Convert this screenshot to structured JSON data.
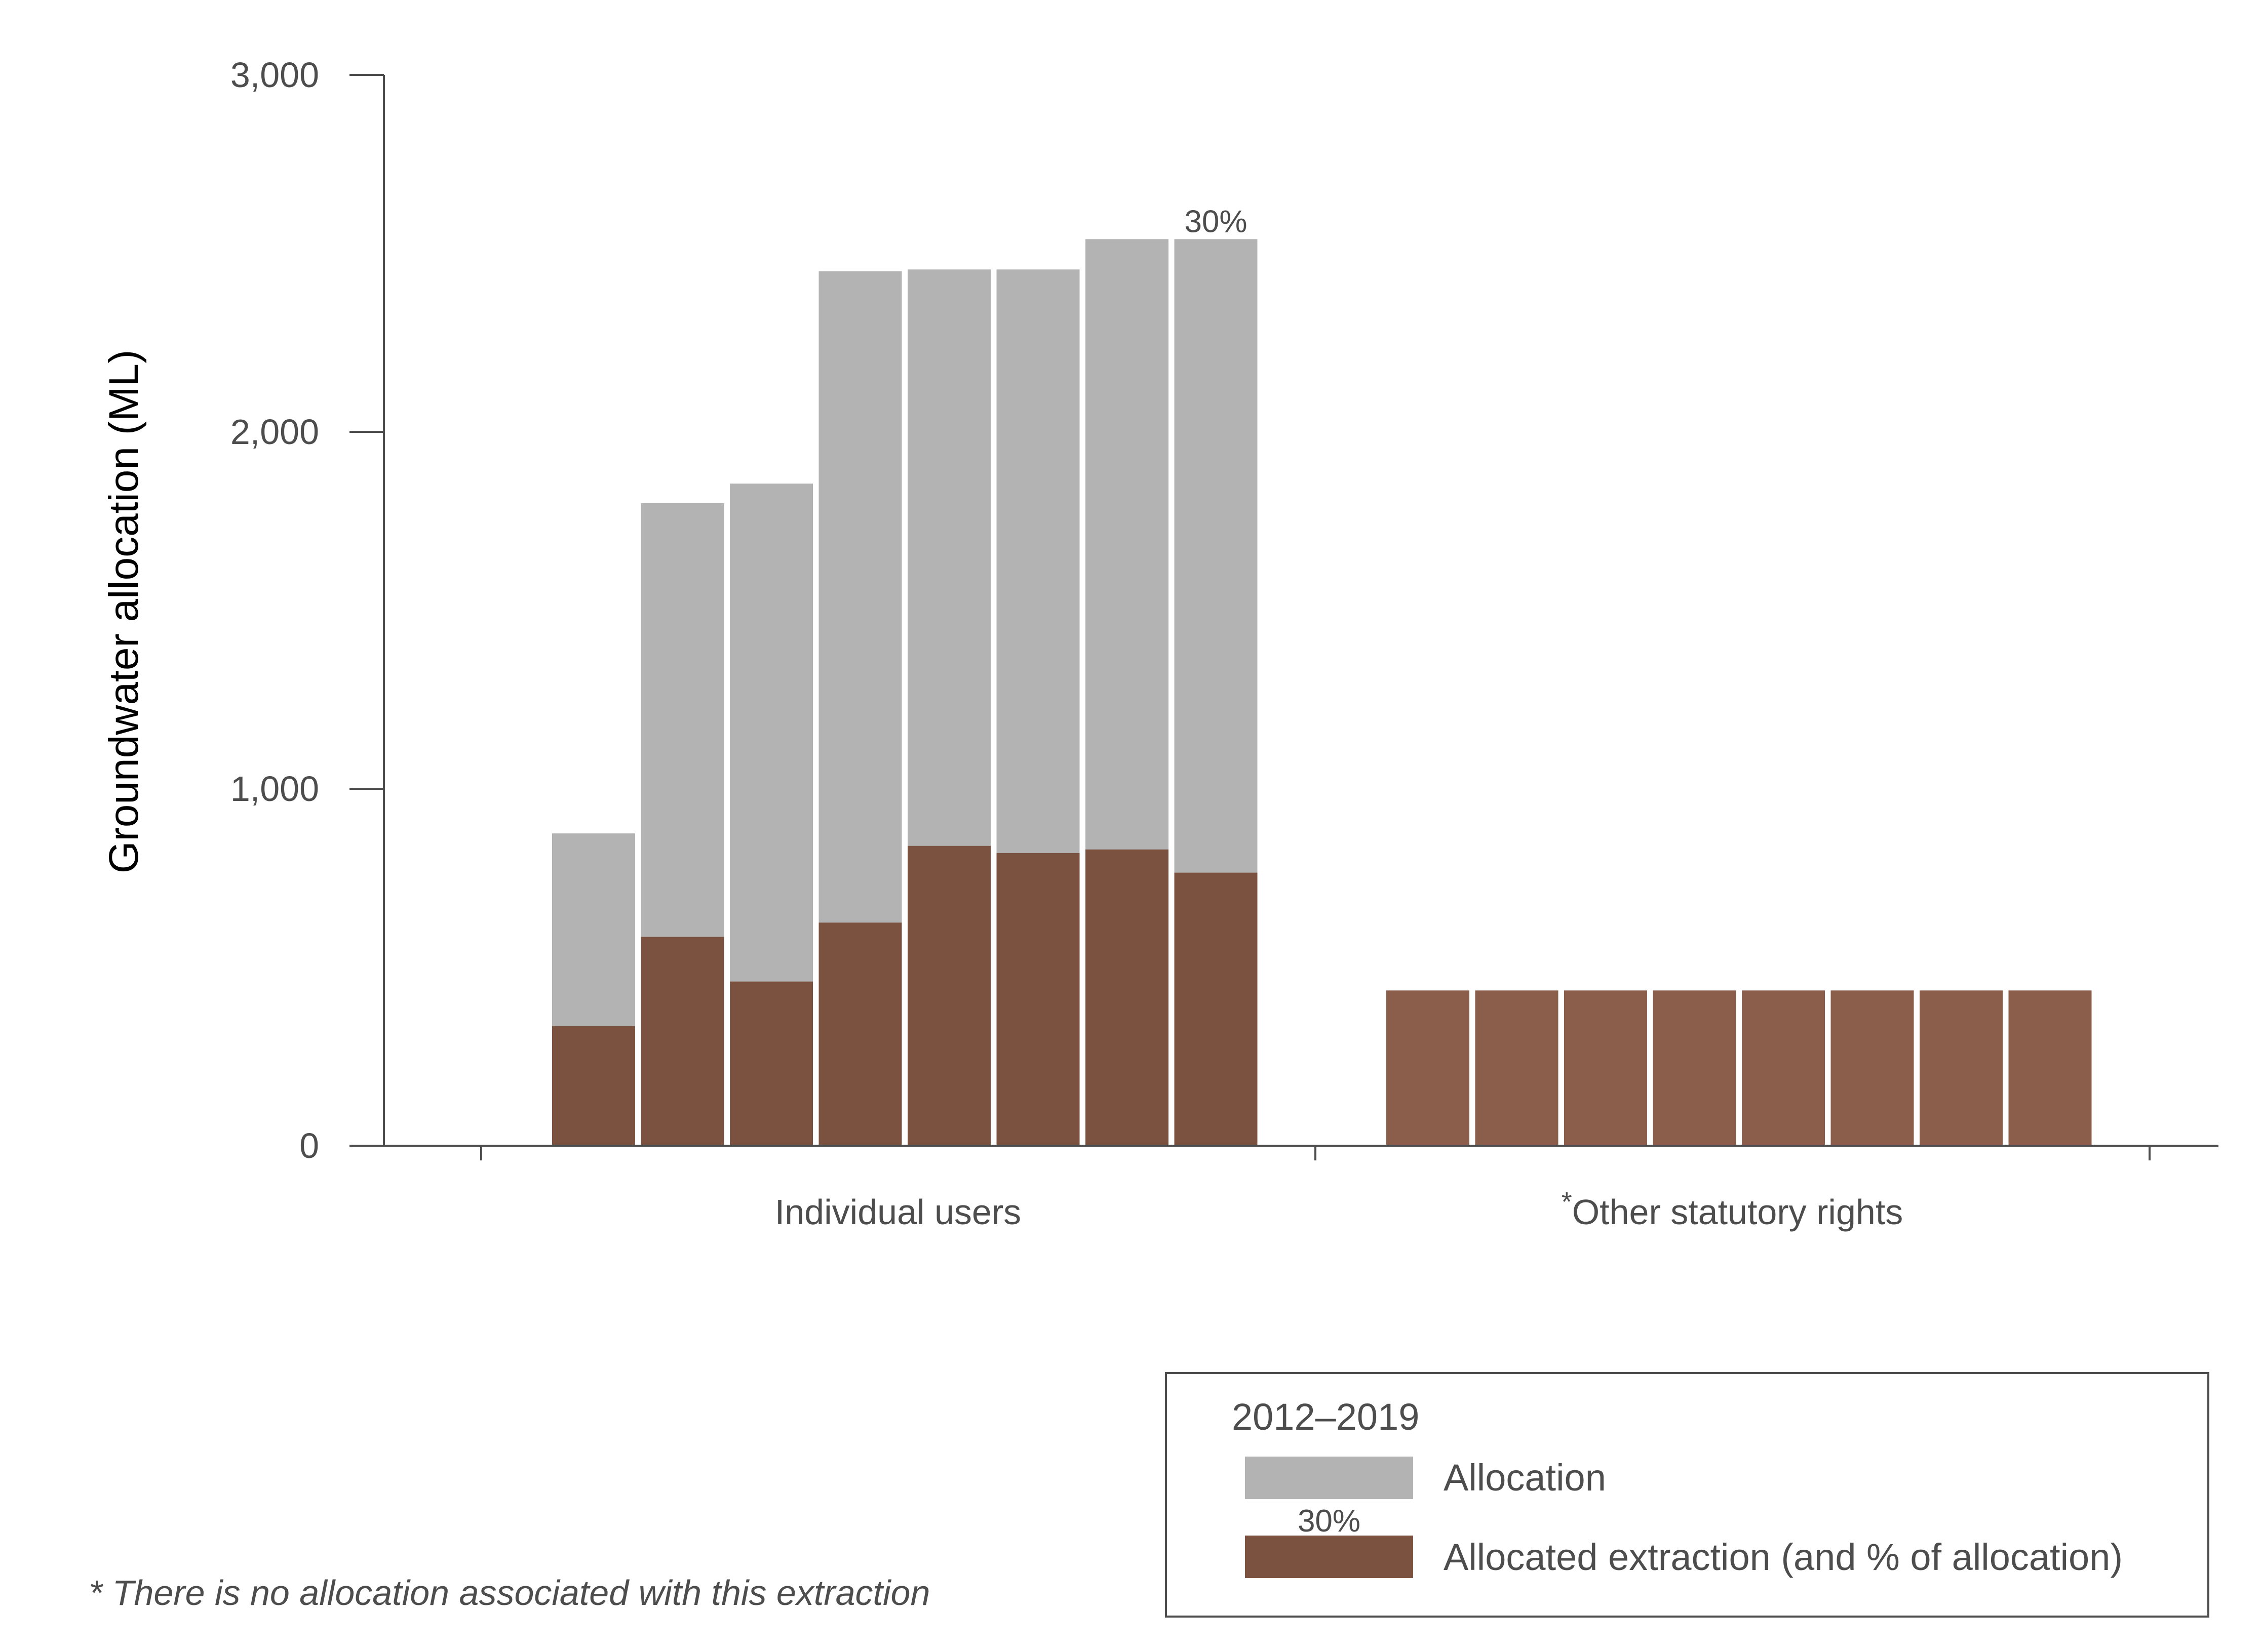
{
  "chart_data": {
    "type": "bar",
    "stacked": "overlay",
    "ylabel": "Groundwater allocation (ML)",
    "ylim": [
      0,
      3000
    ],
    "yticks": [
      0,
      1000,
      2000,
      3000
    ],
    "ytick_labels": [
      "0",
      "1,000",
      "2,000",
      "3,000"
    ],
    "categories": [
      "Individual users",
      "Other statutory rights"
    ],
    "category_prefix": [
      "",
      "*"
    ],
    "groups": [
      {
        "category": "Individual users",
        "allocation": [
          875,
          1800,
          1855,
          2450,
          2455,
          2455,
          2540,
          2540
        ],
        "extraction": [
          335,
          585,
          460,
          625,
          840,
          820,
          830,
          765
        ]
      },
      {
        "category": "Other statutory rights",
        "allocation": [
          null,
          null,
          null,
          null,
          null,
          null,
          null,
          null
        ],
        "extraction": [
          435,
          435,
          435,
          435,
          435,
          435,
          435,
          435
        ]
      }
    ],
    "annotations": [
      {
        "group": 0,
        "bar": 7,
        "text": "30%"
      }
    ],
    "legend": {
      "position": "bottom-right",
      "title": "2012–2019",
      "items": [
        {
          "label": "Allocation",
          "color": "#b3b3b3"
        },
        {
          "label": "Allocated extraction (and % of allocation)",
          "color": "#7b513f",
          "swatch_note": "30%"
        }
      ]
    },
    "footnote": "* There is no allocation associated with this extraction",
    "colors": {
      "allocation": "#b3b3b3",
      "extraction_individual": "#7b513f",
      "extraction_other": "#8a5e4b",
      "axis": "#4d4d4d"
    }
  }
}
